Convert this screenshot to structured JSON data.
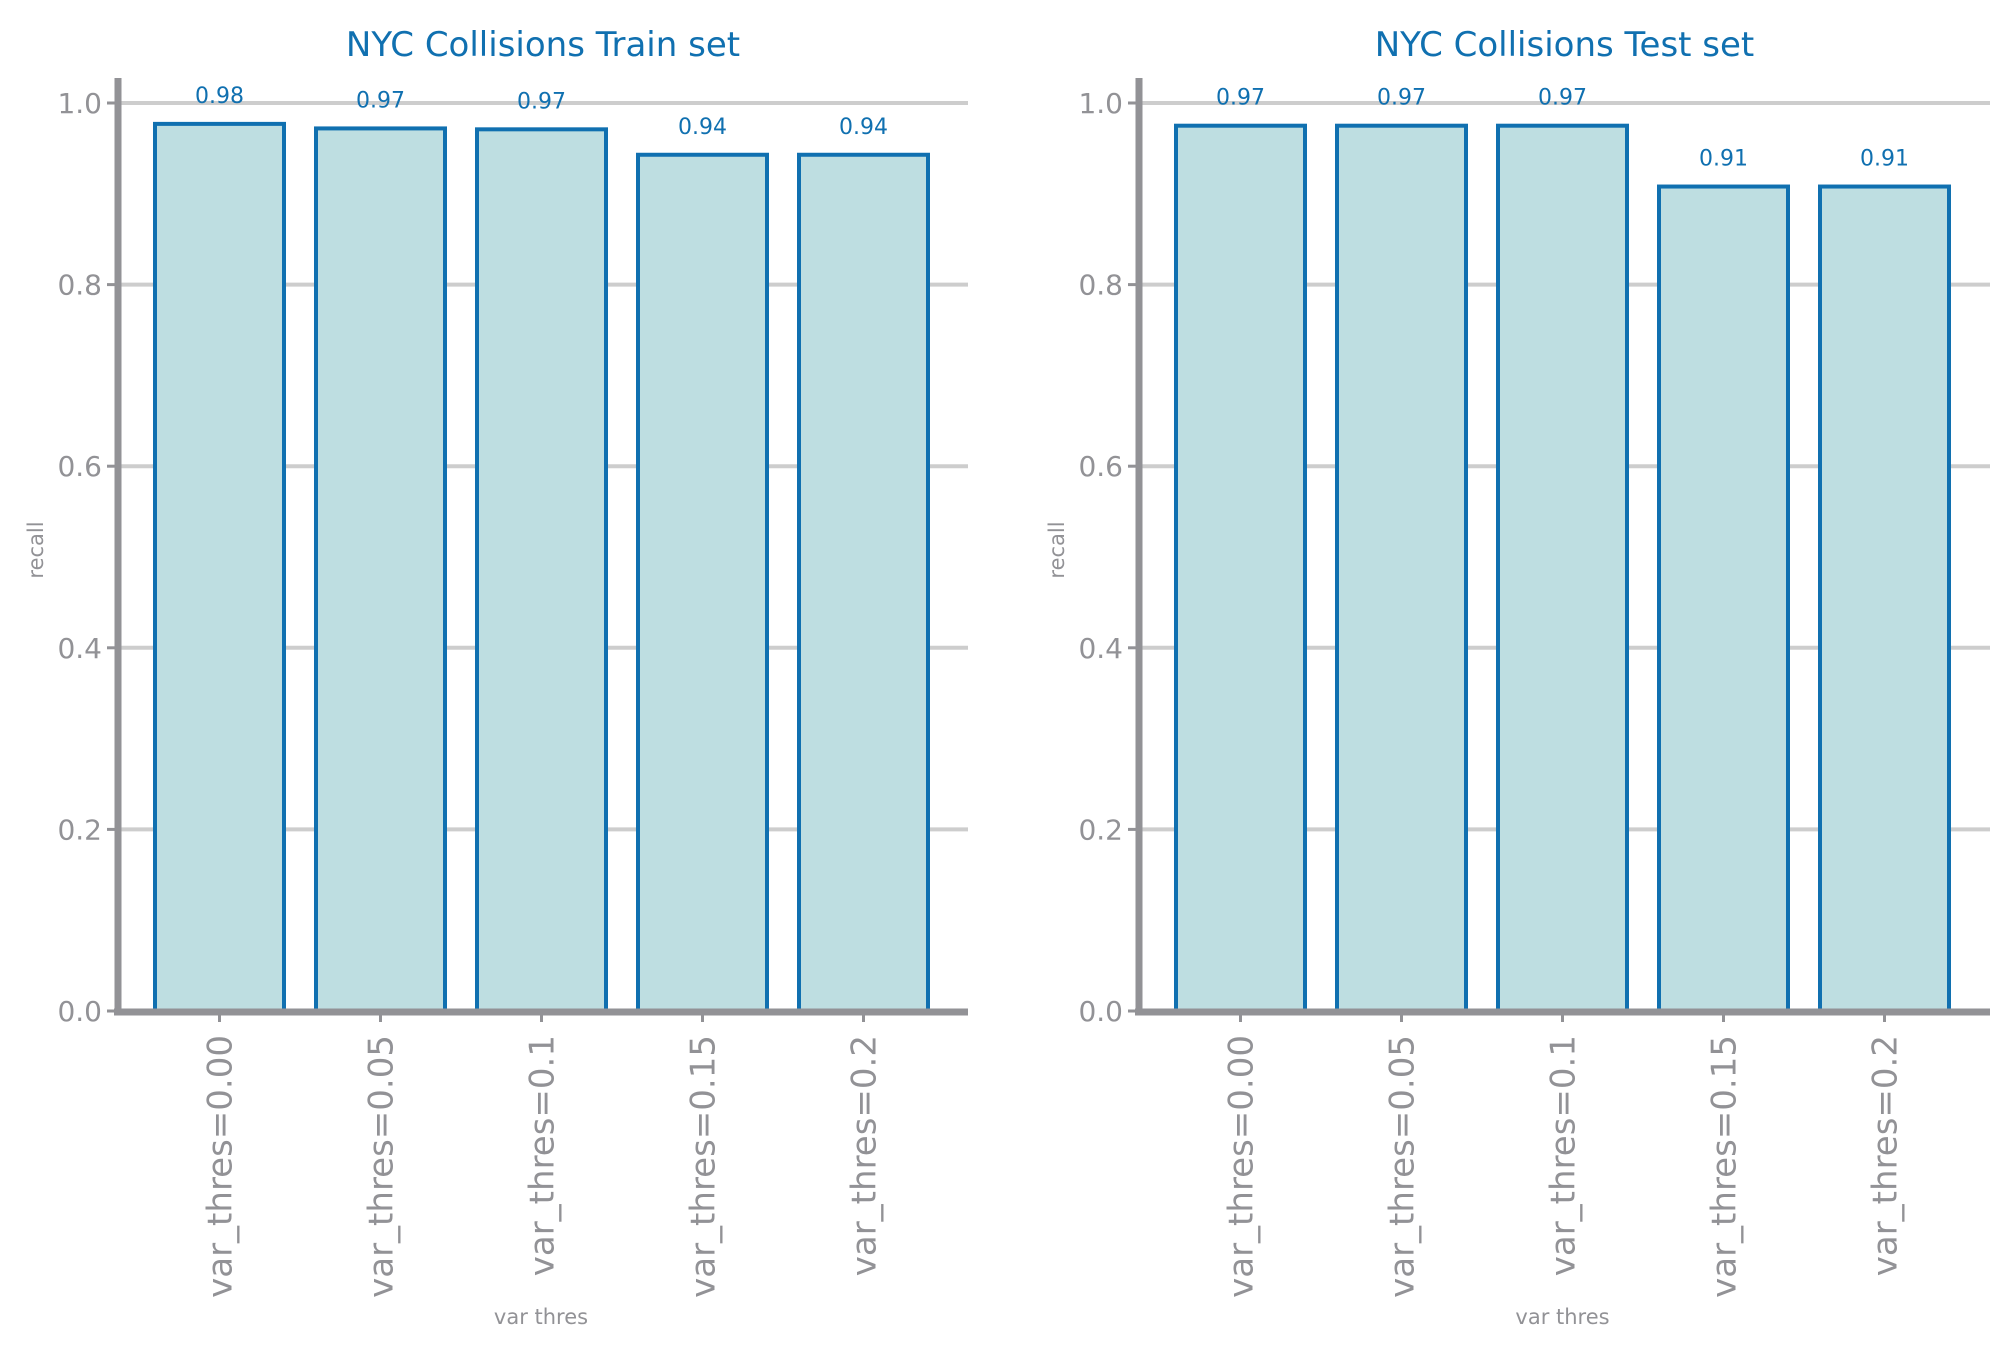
{
  "colors": {
    "accent": "#1070b0",
    "bar_fill": "#bedee1",
    "bar_stroke": "#1070b0",
    "axis": "#929296",
    "grid": "#cdcdcd",
    "tick_text": "#929296",
    "background": "#ffffff"
  },
  "chart_data": [
    {
      "type": "bar",
      "title": "NYC Collisions Train set",
      "xlabel": "var thres",
      "ylabel": "recall",
      "categories": [
        "var_thres=0.00",
        "var_thres=0.05",
        "var_thres=0.1",
        "var_thres=0.15",
        "var_thres=0.2"
      ],
      "values": [
        0.977,
        0.972,
        0.971,
        0.943,
        0.943
      ],
      "value_labels": [
        "0.98",
        "0.97",
        "0.97",
        "0.94",
        "0.94"
      ],
      "ylim": [
        0,
        1.0
      ],
      "yticks": [
        0.0,
        0.2,
        0.4,
        0.6,
        0.8,
        1.0
      ],
      "ytick_labels": [
        "0.0",
        "0.2",
        "0.4",
        "0.6",
        "0.8",
        "1.0"
      ],
      "grid": "horizontal",
      "legend": "none"
    },
    {
      "type": "bar",
      "title": "NYC Collisions Test set",
      "xlabel": "var thres",
      "ylabel": "recall",
      "categories": [
        "var_thres=0.00",
        "var_thres=0.05",
        "var_thres=0.1",
        "var_thres=0.15",
        "var_thres=0.2"
      ],
      "values": [
        0.975,
        0.975,
        0.975,
        0.908,
        0.908
      ],
      "value_labels": [
        "0.97",
        "0.97",
        "0.97",
        "0.91",
        "0.91"
      ],
      "ylim": [
        0,
        1.0
      ],
      "yticks": [
        0.0,
        0.2,
        0.4,
        0.6,
        0.8,
        1.0
      ],
      "ytick_labels": [
        "0.0",
        "0.2",
        "0.4",
        "0.6",
        "0.8",
        "1.0"
      ],
      "grid": "horizontal",
      "legend": "none"
    }
  ]
}
